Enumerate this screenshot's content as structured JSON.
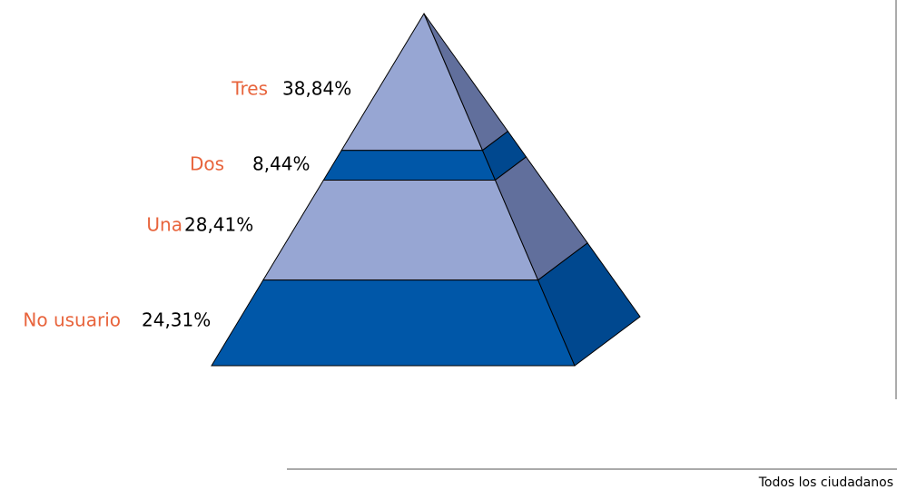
{
  "chart_data": {
    "type": "pyramid",
    "categories": [
      "Tres",
      "Dos",
      "Una",
      "No usuario"
    ],
    "values": [
      38.84,
      8.44,
      28.41,
      24.31
    ],
    "value_labels": [
      "38,84%",
      "8,44%",
      "28,41%",
      "24,31%"
    ],
    "colors": [
      "#97a6d3",
      "#0057a8",
      "#97a6d3",
      "#0057a8"
    ],
    "side_colors": [
      "#616f9c",
      "#00488f",
      "#616f9c",
      "#00488f"
    ],
    "footer": "Todos los ciudadanos"
  }
}
